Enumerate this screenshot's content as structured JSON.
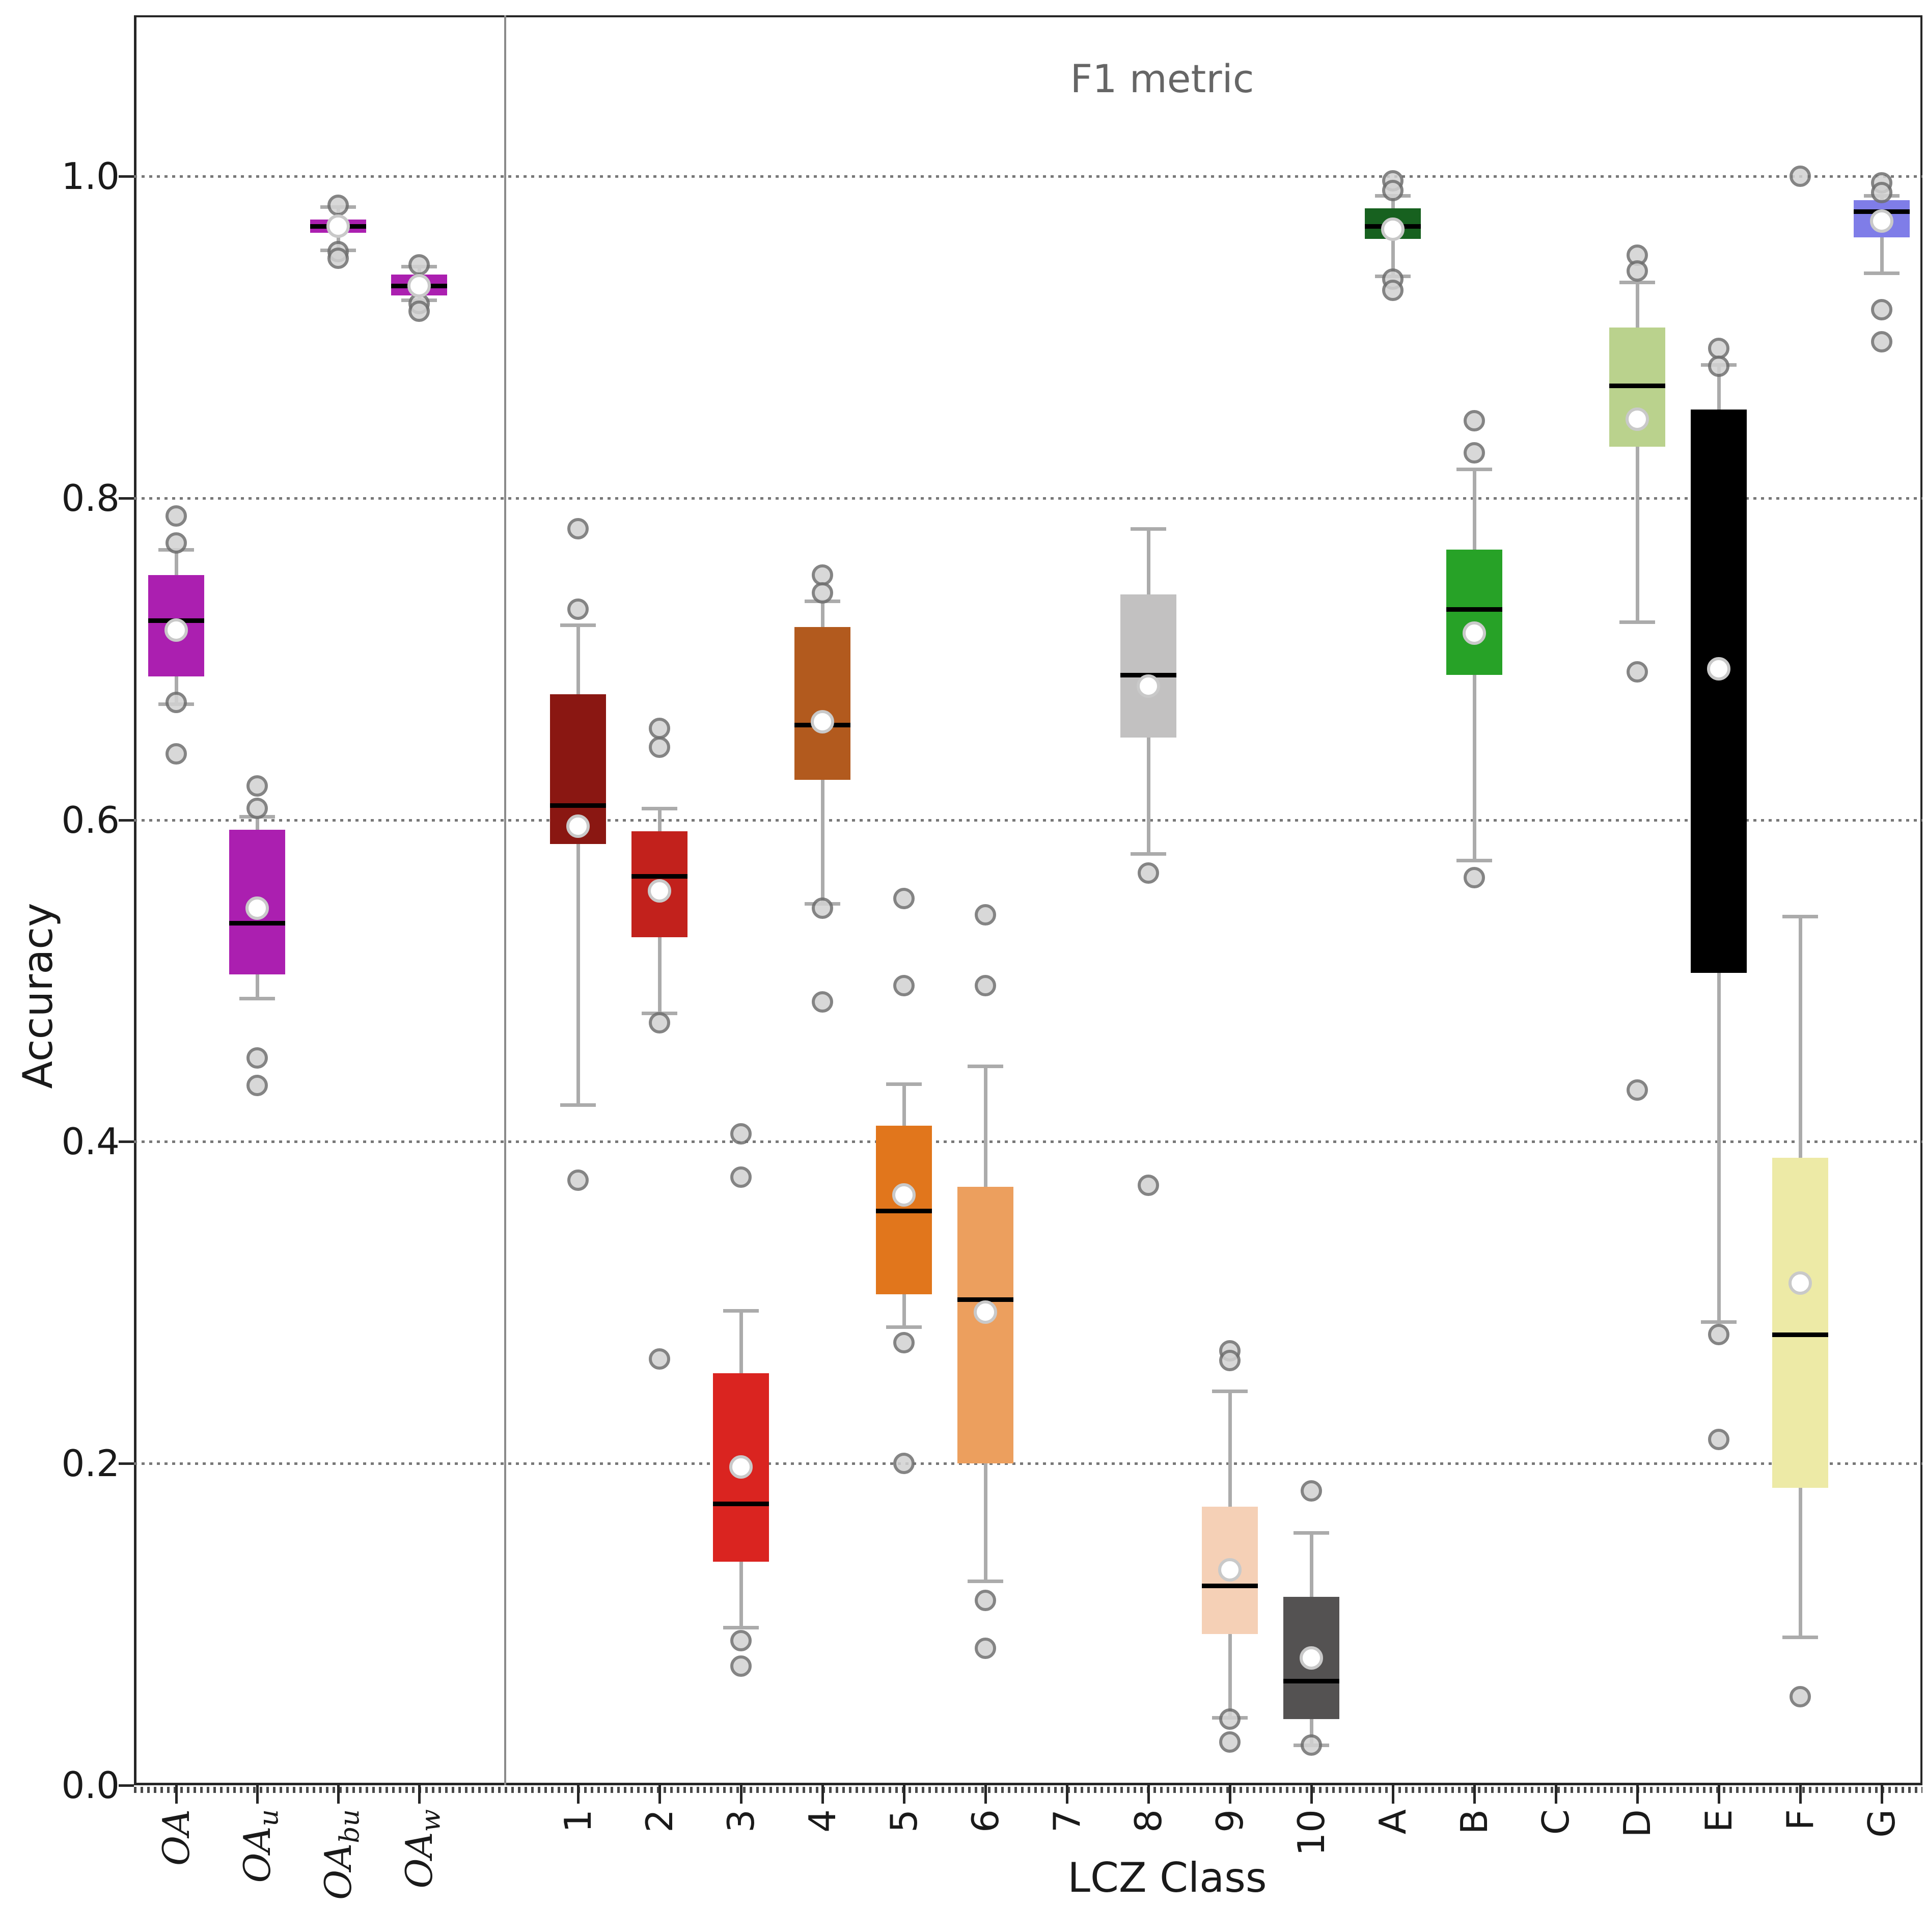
{
  "figure": {
    "title": "F1 metric",
    "xlabel": "LCZ Class",
    "ylabel": "Accuracy"
  },
  "chart_data": {
    "type": "boxplot",
    "title": "F1 metric",
    "xlabel": "LCZ Class",
    "ylabel": "Accuracy",
    "ylim": [
      0.0,
      1.1
    ],
    "grid": "horizontal dotted lines at y ticks",
    "legend": "none",
    "yticks": [
      0.0,
      0.2,
      0.4,
      0.6,
      0.8,
      1.0
    ],
    "ytick_labels": [
      "0.0",
      "0.2",
      "0.4",
      "0.6",
      "0.8",
      "1.0"
    ],
    "colors": {
      "median": "#000000",
      "whisker": "#ababab",
      "mean_marker_fill": "#ffffff",
      "mean_marker_edge": "#c9c9c9",
      "outlier_fill": "#d2d2d2",
      "outlier_edge": "#6f6f6f",
      "grid": "#787878",
      "separator": "#8a8a8a",
      "title_text": "#666666"
    },
    "groups": [
      {
        "name": "overall",
        "tick_labels": [
          {
            "text": "OA",
            "sub": "",
            "italic": true
          },
          {
            "text": "OA",
            "sub": "u",
            "italic": true
          },
          {
            "text": "OA",
            "sub": "bu",
            "italic": true
          },
          {
            "text": "OA",
            "sub": "w",
            "italic": true
          }
        ]
      },
      {
        "name": "lcz",
        "tick_labels": [
          {
            "text": "1"
          },
          {
            "text": "2"
          },
          {
            "text": "3"
          },
          {
            "text": "4"
          },
          {
            "text": "5"
          },
          {
            "text": "6"
          },
          {
            "text": "7"
          },
          {
            "text": "8"
          },
          {
            "text": "9"
          },
          {
            "text": "10"
          },
          {
            "text": "A"
          },
          {
            "text": "B"
          },
          {
            "text": "C"
          },
          {
            "text": "D"
          },
          {
            "text": "E"
          },
          {
            "text": "F"
          },
          {
            "text": "G"
          }
        ]
      }
    ],
    "series": [
      {
        "label": "OA",
        "group": "overall",
        "col": 0,
        "color": "#ab1fb0",
        "q1": 0.689,
        "median": 0.724,
        "q3": 0.752,
        "mean": 0.718,
        "whisker_low": 0.672,
        "whisker_high": 0.768,
        "outliers": [
          0.789,
          0.772,
          0.673,
          0.641
        ]
      },
      {
        "label": "OAu",
        "group": "overall",
        "col": 1,
        "color": "#ab1fb0",
        "q1": 0.504,
        "median": 0.536,
        "q3": 0.594,
        "mean": 0.545,
        "whisker_low": 0.489,
        "whisker_high": 0.602,
        "outliers": [
          0.621,
          0.607,
          0.452,
          0.435
        ]
      },
      {
        "label": "OAbu",
        "group": "overall",
        "col": 2,
        "color": "#ab1fb0",
        "q1": 0.965,
        "median": 0.969,
        "q3": 0.973,
        "mean": 0.969,
        "whisker_low": 0.954,
        "whisker_high": 0.981,
        "outliers": [
          0.982,
          0.953,
          0.949
        ]
      },
      {
        "label": "OAw",
        "group": "overall",
        "col": 3,
        "color": "#ab1fb0",
        "q1": 0.926,
        "median": 0.932,
        "q3": 0.939,
        "mean": 0.932,
        "whisker_low": 0.923,
        "whisker_high": 0.944,
        "outliers": [
          0.945,
          0.921,
          0.916
        ]
      },
      {
        "label": "1",
        "group": "lcz",
        "col": 0,
        "color": "#8a1712",
        "q1": 0.585,
        "median": 0.609,
        "q3": 0.678,
        "mean": 0.596,
        "whisker_low": 0.423,
        "whisker_high": 0.721,
        "outliers": [
          0.781,
          0.731,
          0.376
        ]
      },
      {
        "label": "2",
        "group": "lcz",
        "col": 1,
        "color": "#c2211c",
        "q1": 0.527,
        "median": 0.565,
        "q3": 0.593,
        "mean": 0.556,
        "whisker_low": 0.48,
        "whisker_high": 0.607,
        "outliers": [
          0.657,
          0.645,
          0.474,
          0.265
        ]
      },
      {
        "label": "3",
        "group": "lcz",
        "col": 2,
        "color": "#da2420",
        "q1": 0.139,
        "median": 0.175,
        "q3": 0.256,
        "mean": 0.198,
        "whisker_low": 0.098,
        "whisker_high": 0.295,
        "outliers": [
          0.405,
          0.378,
          0.09,
          0.074
        ]
      },
      {
        "label": "4",
        "group": "lcz",
        "col": 3,
        "color": "#b25a1e",
        "q1": 0.625,
        "median": 0.659,
        "q3": 0.72,
        "mean": 0.661,
        "whisker_low": 0.548,
        "whisker_high": 0.736,
        "outliers": [
          0.752,
          0.741,
          0.545,
          0.487
        ]
      },
      {
        "label": "5",
        "group": "lcz",
        "col": 4,
        "color": "#e1761c",
        "q1": 0.305,
        "median": 0.357,
        "q3": 0.41,
        "mean": 0.367,
        "whisker_low": 0.285,
        "whisker_high": 0.436,
        "outliers": [
          0.551,
          0.497,
          0.275,
          0.2
        ]
      },
      {
        "label": "6",
        "group": "lcz",
        "col": 5,
        "color": "#ec9f5e",
        "q1": 0.2,
        "median": 0.302,
        "q3": 0.372,
        "mean": 0.294,
        "whisker_low": 0.127,
        "whisker_high": 0.447,
        "outliers": [
          0.541,
          0.497,
          0.115,
          0.085
        ]
      },
      {
        "label": "8",
        "group": "lcz",
        "col": 7,
        "color": "#c2c1c1",
        "q1": 0.651,
        "median": 0.69,
        "q3": 0.74,
        "mean": 0.683,
        "whisker_low": 0.579,
        "whisker_high": 0.781,
        "outliers": [
          0.567,
          0.373
        ]
      },
      {
        "label": "9",
        "group": "lcz",
        "col": 8,
        "color": "#f5d0b6",
        "q1": 0.094,
        "median": 0.124,
        "q3": 0.173,
        "mean": 0.134,
        "whisker_low": 0.042,
        "whisker_high": 0.245,
        "outliers": [
          0.27,
          0.264,
          0.041,
          0.027
        ]
      },
      {
        "label": "10",
        "group": "lcz",
        "col": 9,
        "color": "#545252",
        "q1": 0.041,
        "median": 0.065,
        "q3": 0.117,
        "mean": 0.079,
        "whisker_low": 0.025,
        "whisker_high": 0.157,
        "outliers": [
          0.183,
          0.025
        ]
      },
      {
        "label": "A",
        "group": "lcz",
        "col": 10,
        "color": "#17611f",
        "q1": 0.961,
        "median": 0.969,
        "q3": 0.98,
        "mean": 0.967,
        "whisker_low": 0.938,
        "whisker_high": 0.988,
        "outliers": [
          0.997,
          0.991,
          0.936,
          0.929
        ]
      },
      {
        "label": "B",
        "group": "lcz",
        "col": 11,
        "color": "#27a227",
        "q1": 0.69,
        "median": 0.731,
        "q3": 0.768,
        "mean": 0.716,
        "whisker_low": 0.575,
        "whisker_high": 0.818,
        "outliers": [
          0.848,
          0.828,
          0.564
        ]
      },
      {
        "label": "D",
        "group": "lcz",
        "col": 13,
        "color": "#bad28d",
        "q1": 0.832,
        "median": 0.87,
        "q3": 0.906,
        "mean": 0.849,
        "whisker_low": 0.723,
        "whisker_high": 0.934,
        "outliers": [
          0.951,
          0.941,
          0.692,
          0.432
        ]
      },
      {
        "label": "E",
        "group": "lcz",
        "col": 14,
        "color": "#000000",
        "q1": 0.505,
        "median": 0.841,
        "q3": 0.855,
        "mean": 0.694,
        "whisker_low": 0.288,
        "whisker_high": 0.883,
        "outliers": [
          0.893,
          0.882,
          0.28,
          0.215
        ]
      },
      {
        "label": "F",
        "group": "lcz",
        "col": 15,
        "color": "#edeaa6",
        "q1": 0.185,
        "median": 0.28,
        "q3": 0.39,
        "mean": 0.312,
        "whisker_low": 0.092,
        "whisker_high": 0.54,
        "outliers": [
          1.0,
          0.055
        ]
      },
      {
        "label": "G",
        "group": "lcz",
        "col": 16,
        "color": "#7f7de8",
        "q1": 0.962,
        "median": 0.978,
        "q3": 0.985,
        "mean": 0.972,
        "whisker_low": 0.94,
        "whisker_high": 0.988,
        "outliers": [
          0.996,
          0.99,
          0.917,
          0.897
        ]
      }
    ]
  }
}
